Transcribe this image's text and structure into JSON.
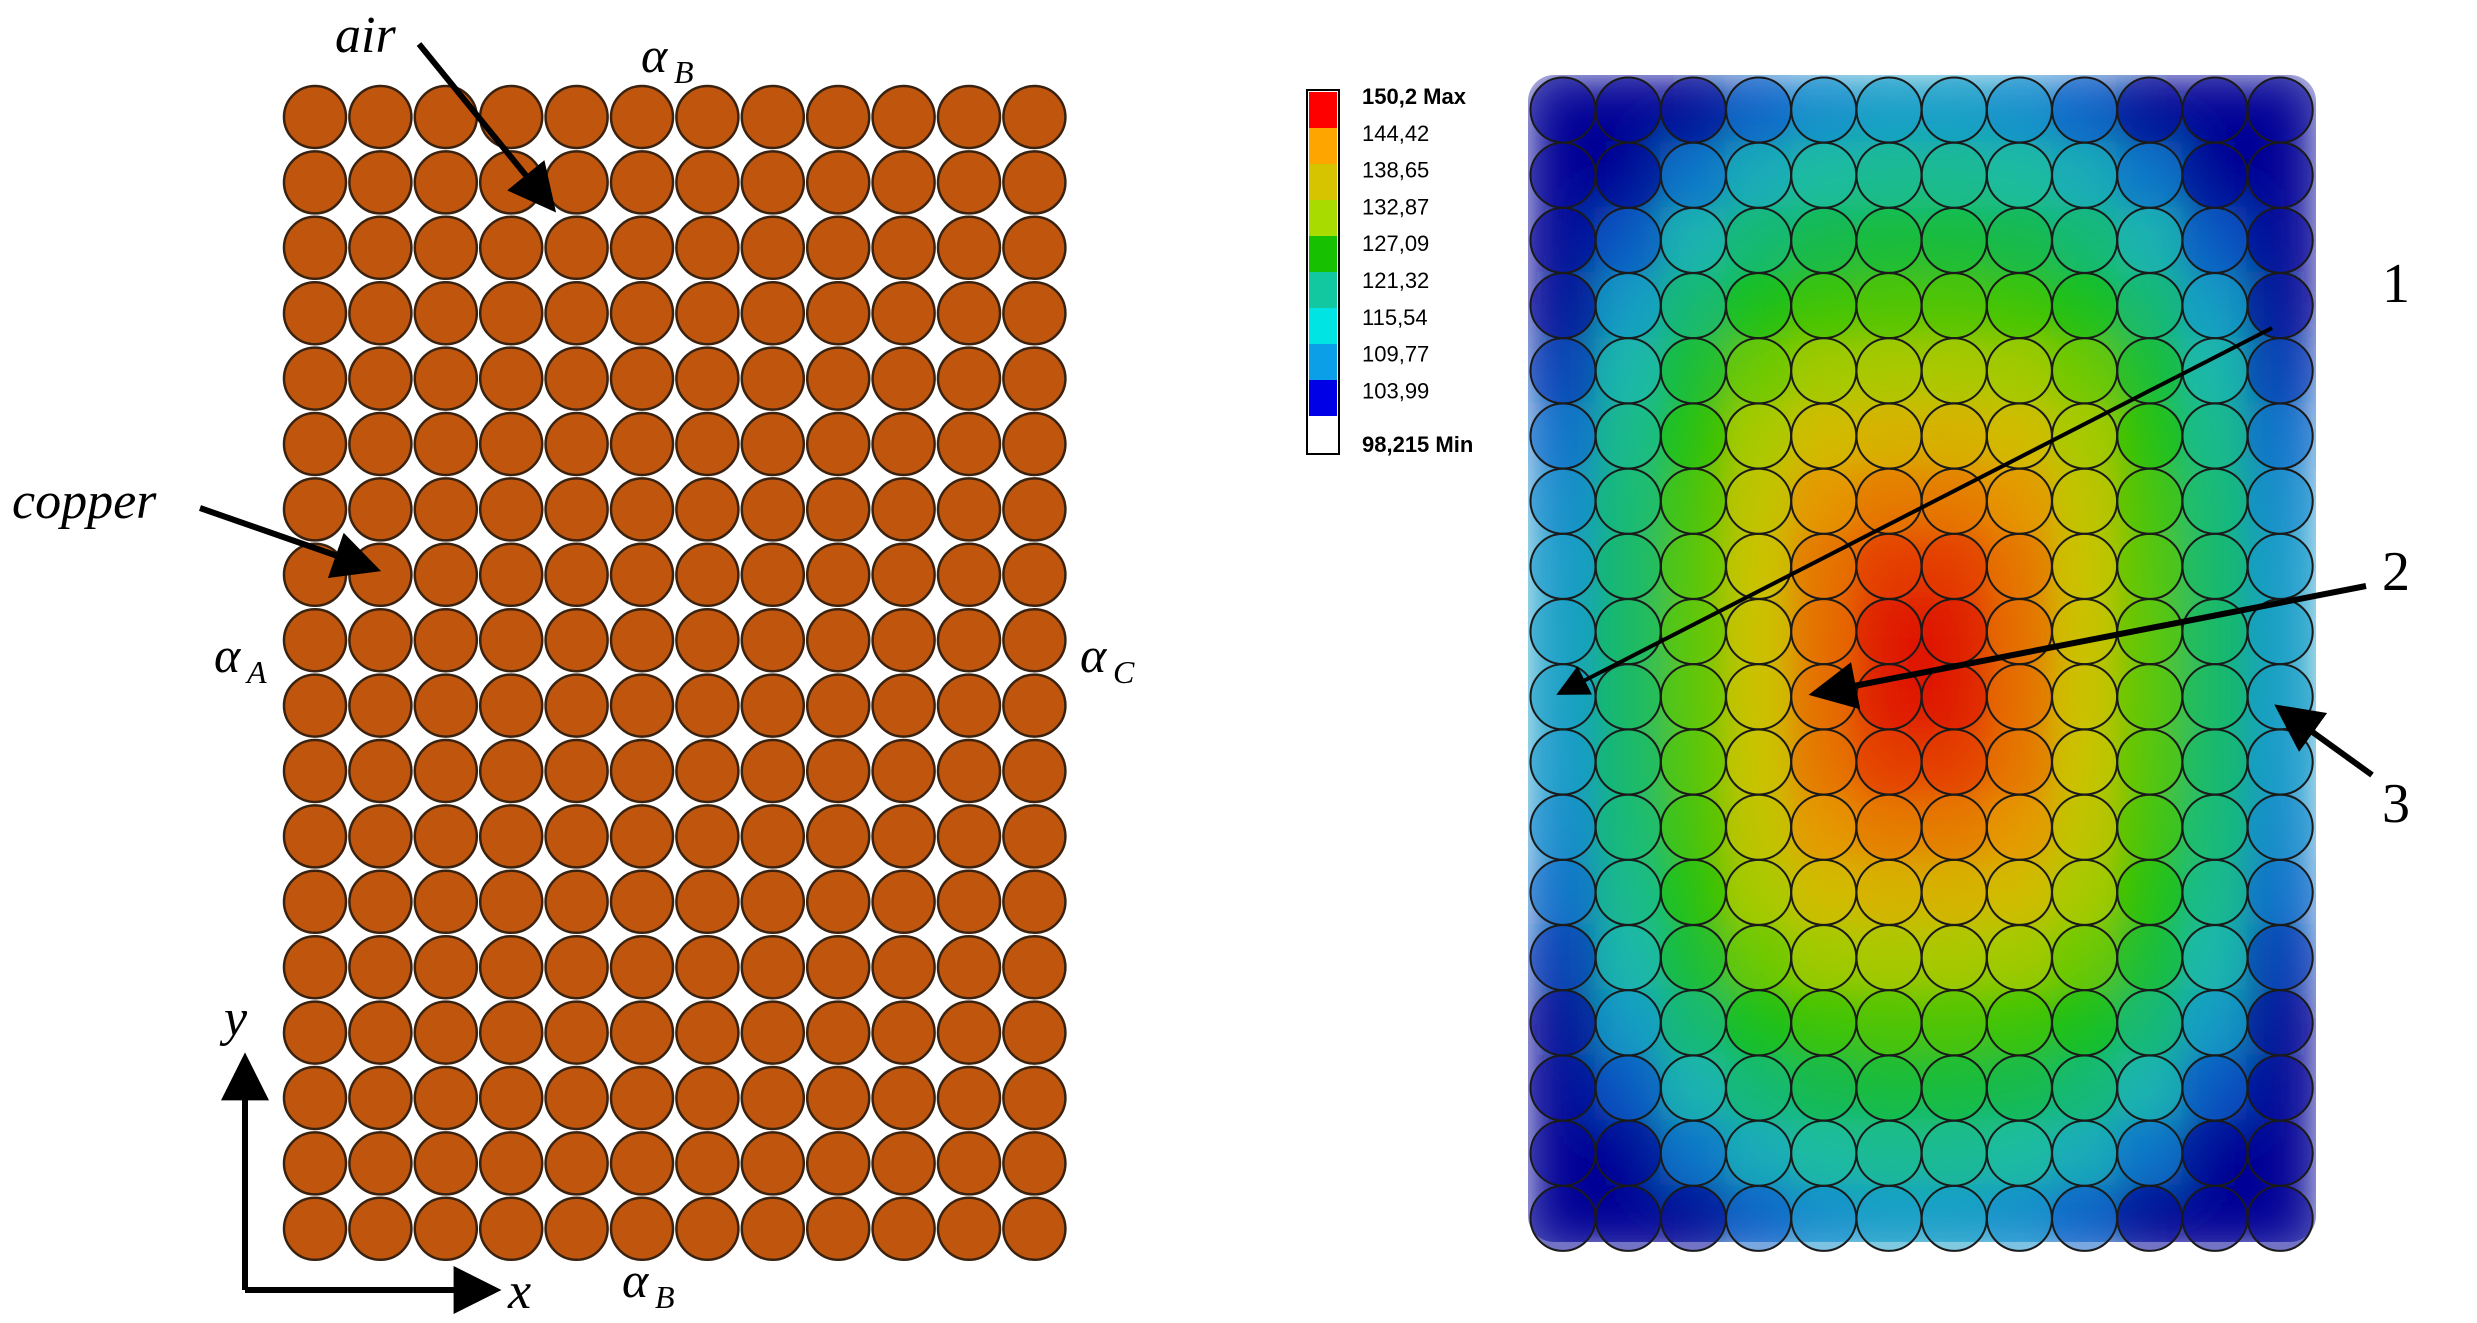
{
  "left_panel": {
    "grid": {
      "columns": 12,
      "rows": 18
    },
    "colors": {
      "copper": "#c0560e",
      "stroke": "#3a2210"
    },
    "labels": {
      "air": "air",
      "copper": "copper",
      "alpha": "α",
      "top_sub": "B",
      "bottom_sub": "B",
      "left_sub": "A",
      "right_sub": "C",
      "x_axis": "x",
      "y_axis": "y"
    }
  },
  "right_panel": {
    "grid": {
      "columns": 12,
      "rows": 18
    },
    "legend": {
      "entries": [
        "150,2 Max",
        "144,42",
        "138,65",
        "132,87",
        "127,09",
        "121,32",
        "115,54",
        "109,77",
        "103,99",
        "98,215 Min"
      ],
      "colors": [
        "#ff0000",
        "#ffa500",
        "#d7c400",
        "#a8dc00",
        "#17c000",
        "#11c8a0",
        "#00e4e4",
        "#0a9fe6",
        "#0000e6",
        "#ffffff"
      ]
    },
    "callouts": [
      "1",
      "2",
      "3"
    ],
    "value_range": {
      "min": 98.215,
      "max": 150.2
    }
  }
}
